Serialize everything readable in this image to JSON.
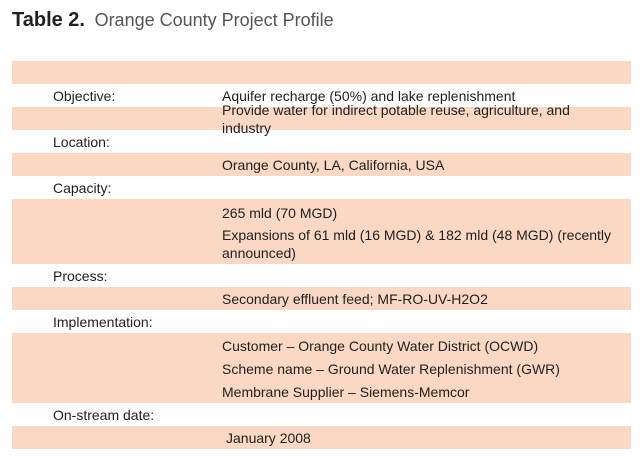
{
  "title": {
    "label": "Table 2.",
    "text": "Orange County Project Profile"
  },
  "rows": {
    "objective": {
      "label": "Objective:",
      "values": [
        "Aquifer recharge (50%) and lake replenishment",
        "Provide water for indirect potable reuse, agriculture, and industry"
      ]
    },
    "location": {
      "label": "Location:",
      "values": [
        "Orange County, LA, California, USA"
      ]
    },
    "capacity": {
      "label": "Capacity:",
      "values": [
        "265 mld (70 MGD)",
        "Expansions of 61 mld (16 MGD) & 182 mld (48 MGD) (recently announced)"
      ]
    },
    "process": {
      "label": "Process:",
      "values": [
        "Secondary effluent feed; MF-RO-UV-H2O2"
      ]
    },
    "implementation": {
      "label": "Implementation:",
      "values": [
        "Customer – Orange County Water District (OCWD)",
        "Scheme name – Ground Water Replenishment (GWR)",
        "Membrane Supplier – Siemens-Memcor"
      ]
    },
    "onstream": {
      "label": "On-stream date:",
      "values": [
        "January 2008"
      ]
    }
  },
  "colors": {
    "band": "#fad8c3",
    "title_label": "#222222",
    "title_text": "#555555"
  }
}
